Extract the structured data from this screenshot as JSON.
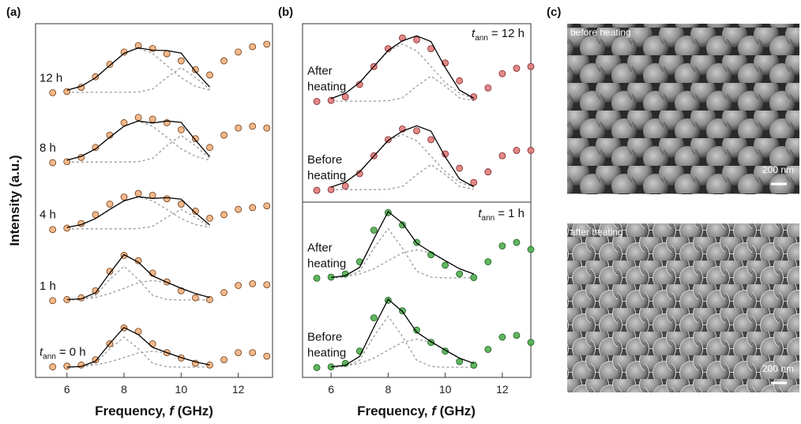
{
  "chart_data": [
    {
      "type": "scatter",
      "panel_label": "(a)",
      "x_label": {
        "prefix": "Frequency, ",
        "symbol": "f",
        "suffix": " (GHz)"
      },
      "y_label": "Intensity (a.u.)",
      "xlim": [
        4.9,
        13.2
      ],
      "ylim": [
        0,
        10
      ],
      "xticks": [
        6,
        8,
        10,
        12
      ],
      "fit_color": "#000000",
      "component_color": "#9a9a9a",
      "x": [
        5.5,
        6,
        6.5,
        7,
        7.5,
        8,
        8.5,
        9,
        9.5,
        10,
        10.5,
        11,
        11.5,
        12,
        12.5,
        13
      ],
      "fit_x": [
        6,
        6.5,
        7,
        7.5,
        8,
        8.5,
        9,
        9.5,
        10,
        10.5,
        11
      ],
      "series": [
        {
          "label": {
            "text": "12 h"
          },
          "color": "#f2b07e",
          "edge": "#6b3a12",
          "values": [
            8.05,
            8.08,
            8.2,
            8.5,
            8.85,
            9.2,
            9.38,
            9.3,
            9.15,
            8.95,
            8.7,
            8.55,
            8.95,
            9.2,
            9.35,
            9.42
          ],
          "fit": [
            8.12,
            8.23,
            8.47,
            8.82,
            9.16,
            9.32,
            9.25,
            9.24,
            9.17,
            8.65,
            8.21
          ],
          "components": [
            [
              8.12,
              8.23,
              8.47,
              8.82,
              9.16,
              9.31,
              9.16,
              8.82,
              8.47,
              8.23,
              8.12
            ],
            [
              8.06,
              8.06,
              8.06,
              8.06,
              8.06,
              8.07,
              8.15,
              8.48,
              8.76,
              8.48,
              8.15
            ]
          ]
        },
        {
          "label": {
            "text": "8 h"
          },
          "color": "#f2b07e",
          "edge": "#6b3a12",
          "values": [
            6.07,
            6.1,
            6.22,
            6.5,
            6.85,
            7.2,
            7.35,
            7.3,
            7.2,
            7.0,
            6.75,
            6.5,
            6.85,
            7.05,
            7.1,
            7.05
          ],
          "fit": [
            6.14,
            6.25,
            6.46,
            6.79,
            7.1,
            7.25,
            7.19,
            7.25,
            7.21,
            6.71,
            6.24
          ],
          "components": [
            [
              6.14,
              6.25,
              6.46,
              6.79,
              7.1,
              7.24,
              7.1,
              6.79,
              6.46,
              6.25,
              6.14
            ],
            [
              6.09,
              6.09,
              6.09,
              6.09,
              6.09,
              6.1,
              6.19,
              6.55,
              6.84,
              6.55,
              6.19
            ]
          ]
        },
        {
          "label": {
            "text": "4 h"
          },
          "color": "#f2b07e",
          "edge": "#6b3a12",
          "values": [
            4.18,
            4.22,
            4.35,
            4.6,
            4.9,
            5.1,
            5.2,
            5.15,
            5.05,
            4.9,
            4.7,
            4.5,
            4.6,
            4.75,
            4.8,
            4.85
          ],
          "fit": [
            4.24,
            4.32,
            4.49,
            4.75,
            4.99,
            5.11,
            5.06,
            5.08,
            5.04,
            4.65,
            4.31
          ],
          "components": [
            [
              4.24,
              4.32,
              4.49,
              4.75,
              4.99,
              5.1,
              4.99,
              4.75,
              4.49,
              4.32,
              4.24
            ],
            [
              4.2,
              4.2,
              4.2,
              4.2,
              4.2,
              4.21,
              4.27,
              4.53,
              4.75,
              4.53,
              4.27
            ]
          ]
        },
        {
          "label": {
            "text": "1 h"
          },
          "color": "#f2b07e",
          "edge": "#6b3a12",
          "values": [
            2.17,
            2.2,
            2.25,
            2.45,
            3.0,
            3.45,
            3.3,
            2.95,
            2.7,
            2.45,
            2.25,
            2.2,
            2.4,
            2.6,
            2.65,
            2.62
          ],
          "fit": [
            2.2,
            2.22,
            2.39,
            2.95,
            3.47,
            3.26,
            2.87,
            2.69,
            2.52,
            2.37,
            2.26
          ],
          "components": [
            [
              2.19,
              2.2,
              2.32,
              2.77,
              3.14,
              2.77,
              2.32,
              2.2,
              2.19,
              2.19,
              2.19
            ],
            [
              2.2,
              2.21,
              2.26,
              2.37,
              2.52,
              2.68,
              2.74,
              2.68,
              2.52,
              2.37,
              2.26
            ]
          ]
        },
        {
          "label": {
            "symbol": "t",
            "subscript": "ann",
            "text": "= 0 h"
          },
          "color": "#f2b07e",
          "edge": "#6b3a12",
          "values": [
            0.3,
            0.32,
            0.35,
            0.5,
            0.95,
            1.4,
            1.3,
            0.95,
            0.7,
            0.55,
            0.4,
            0.35,
            0.5,
            0.7,
            0.7,
            0.6
          ],
          "fit": [
            0.29,
            0.31,
            0.46,
            0.96,
            1.41,
            1.21,
            0.85,
            0.7,
            0.56,
            0.44,
            0.35
          ],
          "components": [
            [
              0.29,
              0.3,
              0.4,
              0.81,
              1.14,
              0.81,
              0.4,
              0.3,
              0.29,
              0.29,
              0.29
            ],
            [
              0.29,
              0.31,
              0.35,
              0.44,
              0.56,
              0.69,
              0.74,
              0.69,
              0.56,
              0.44,
              0.35
            ]
          ]
        }
      ]
    },
    {
      "type": "scatter",
      "panel_label": "(b)",
      "annotation": {
        "symbol": "t",
        "subscript": "ann",
        "text": "= 12 h"
      },
      "xlim": [
        5.0,
        13.0
      ],
      "ylim": [
        0,
        5
      ],
      "fit_color": "#000000",
      "component_color": "#9a9a9a",
      "x": [
        5.5,
        6,
        6.5,
        7,
        7.5,
        8,
        8.5,
        9,
        9.5,
        10,
        10.5,
        11,
        11.5,
        12,
        12.5,
        13
      ],
      "fit_x": [
        6,
        6.5,
        7,
        7.5,
        8,
        8.5,
        9,
        9.5,
        10,
        10.5,
        11
      ],
      "series": [
        {
          "label": {
            "lines": [
              "After",
              "heating"
            ]
          },
          "color": "#e07b7b",
          "edge": "#7a2424",
          "values": [
            2.82,
            2.85,
            2.95,
            3.3,
            3.8,
            4.3,
            4.6,
            4.55,
            4.3,
            3.9,
            3.4,
            2.95,
            3.2,
            3.6,
            3.75,
            3.8
          ],
          "fit": [
            2.9,
            3.05,
            3.35,
            3.8,
            4.25,
            4.52,
            4.66,
            4.5,
            3.77,
            3.14,
            2.91
          ],
          "components": [
            [
              2.9,
              3.05,
              3.35,
              3.8,
              4.24,
              4.43,
              4.24,
              3.8,
              3.35,
              3.05,
              2.9
            ],
            [
              2.83,
              2.83,
              2.83,
              2.83,
              2.84,
              2.92,
              3.25,
              3.53,
              3.25,
              2.92,
              2.84
            ]
          ]
        },
        {
          "label": {
            "lines": [
              "Before",
              "heating"
            ]
          },
          "color": "#e07b7b",
          "edge": "#7a2424",
          "values": [
            0.33,
            0.35,
            0.45,
            0.8,
            1.3,
            1.75,
            2.05,
            2.0,
            1.75,
            1.35,
            0.95,
            0.55,
            0.85,
            1.3,
            1.45,
            1.45
          ],
          "fit": [
            0.42,
            0.56,
            0.85,
            1.29,
            1.73,
            1.99,
            2.14,
            1.99,
            1.27,
            0.65,
            0.43
          ],
          "components": [
            [
              0.42,
              0.56,
              0.85,
              1.29,
              1.72,
              1.9,
              1.72,
              1.29,
              0.85,
              0.56,
              0.42
            ],
            [
              0.35,
              0.35,
              0.35,
              0.35,
              0.36,
              0.44,
              0.77,
              1.05,
              0.77,
              0.44,
              0.36
            ]
          ]
        }
      ]
    },
    {
      "type": "scatter",
      "x_label": {
        "prefix": "Frequency, ",
        "symbol": "f",
        "suffix": " (GHz)"
      },
      "annotation": {
        "symbol": "t",
        "subscript": "ann",
        "text": "= 1 h"
      },
      "xlim": [
        5.0,
        13.0
      ],
      "ylim": [
        0,
        5
      ],
      "xticks": [
        6,
        8,
        10,
        12
      ],
      "fit_color": "#000000",
      "component_color": "#9a9a9a",
      "x": [
        5.5,
        6,
        6.5,
        7,
        7.5,
        8,
        8.5,
        9,
        9.5,
        10,
        10.5,
        11,
        11.5,
        12,
        12.5,
        13
      ],
      "fit_x": [
        6,
        6.5,
        7,
        7.5,
        8,
        8.5,
        9,
        9.5,
        10,
        10.5,
        11
      ],
      "series": [
        {
          "label": {
            "lines": [
              "After",
              "heating"
            ]
          },
          "color": "#4fae4f",
          "edge": "#1b5a1b",
          "values": [
            2.83,
            2.86,
            2.95,
            3.3,
            4.2,
            4.7,
            4.35,
            3.85,
            3.5,
            3.2,
            2.95,
            2.85,
            3.3,
            3.75,
            3.85,
            3.65
          ],
          "fit": [
            2.85,
            2.9,
            3.14,
            3.95,
            4.73,
            4.4,
            3.83,
            3.57,
            3.33,
            3.1,
            2.95
          ],
          "components": [
            [
              2.84,
              2.86,
              3.03,
              3.69,
              4.24,
              3.69,
              3.03,
              2.86,
              2.84,
              2.84,
              2.84
            ],
            [
              2.85,
              2.88,
              2.95,
              3.1,
              3.33,
              3.55,
              3.64,
              3.55,
              3.33,
              3.1,
              2.95
            ]
          ]
        },
        {
          "label": {
            "lines": [
              "Before",
              "heating"
            ]
          },
          "color": "#4fae4f",
          "edge": "#1b5a1b",
          "values": [
            0.28,
            0.3,
            0.4,
            0.75,
            1.7,
            2.2,
            1.9,
            1.35,
            1.0,
            0.75,
            0.45,
            0.35,
            0.8,
            1.15,
            1.2,
            1.0
          ],
          "fit": [
            0.3,
            0.35,
            0.6,
            1.43,
            2.23,
            1.88,
            1.29,
            1.02,
            0.78,
            0.55,
            0.4
          ],
          "components": [
            [
              0.29,
              0.31,
              0.49,
              1.17,
              1.74,
              1.17,
              0.49,
              0.31,
              0.29,
              0.29,
              0.29
            ],
            [
              0.3,
              0.33,
              0.4,
              0.55,
              0.78,
              1.0,
              1.09,
              1.0,
              0.78,
              0.55,
              0.4
            ]
          ]
        }
      ]
    }
  ],
  "micrographs": {
    "panel_label": "(c)",
    "images": [
      {
        "label": "before heating",
        "scale_bar": "200 nm"
      },
      {
        "label": "after heating",
        "scale_bar": "200 nm"
      }
    ]
  }
}
